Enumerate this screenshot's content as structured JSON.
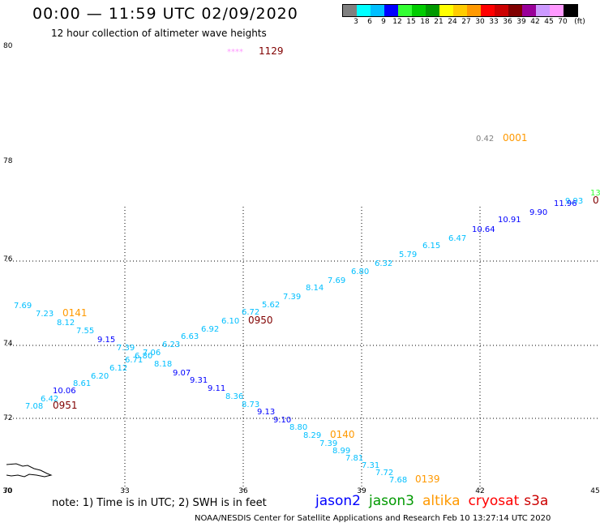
{
  "header": {
    "title": "00:00 — 11:59 UTC 02/09/2020",
    "subtitle": "12 hour collection of altimeter wave heights"
  },
  "colorbar": {
    "colors": [
      "#808080",
      "#00ffff",
      "#00bfff",
      "#0000ff",
      "#33ff33",
      "#00cc00",
      "#009900",
      "#ffff00",
      "#ffcc00",
      "#ff9900",
      "#ff0000",
      "#cc0000",
      "#800000",
      "#990099",
      "#cc99ff",
      "#ff99ff",
      "#000000"
    ],
    "labels": [
      "3",
      "6",
      "9",
      "12",
      "15",
      "18",
      "21",
      "24",
      "27",
      "30",
      "33",
      "36",
      "39",
      "42",
      "45",
      "70",
      "(ft)"
    ]
  },
  "axes": {
    "x_ticks": [
      "30",
      "33",
      "36",
      "39",
      "42",
      "45"
    ],
    "y_ticks": [
      "80",
      "78",
      "76",
      "74",
      "72",
      "70"
    ]
  },
  "readings": [
    {
      "t": "****",
      "color": "#ff99ff",
      "size": 10
    },
    {
      "t": "1129",
      "color": "#800000",
      "size": 12
    },
    {
      "t": "0.42",
      "color": "#808080",
      "size": 10
    },
    {
      "t": "0001",
      "color": "#ff9900",
      "size": 12
    },
    {
      "t": "13",
      "color": "#33ff33",
      "size": 10
    },
    {
      "t": "0",
      "color": "#800000",
      "size": 12
    },
    {
      "t": "9.93",
      "color": "#00bfff",
      "size": 10
    },
    {
      "t": "11.96",
      "color": "#0000ff",
      "size": 10
    },
    {
      "t": "9.90",
      "color": "#0000ff",
      "size": 10
    },
    {
      "t": "10.91",
      "color": "#0000ff",
      "size": 10
    },
    {
      "t": "10.64",
      "color": "#0000ff",
      "size": 10
    },
    {
      "t": "6.47",
      "color": "#00bfff",
      "size": 10
    },
    {
      "t": "6.15",
      "color": "#00bfff",
      "size": 10
    },
    {
      "t": "5.79",
      "color": "#00bfff",
      "size": 10
    },
    {
      "t": "6.32",
      "color": "#00bfff",
      "size": 10
    },
    {
      "t": "6.80",
      "color": "#00bfff",
      "size": 10
    },
    {
      "t": "7.69",
      "color": "#00bfff",
      "size": 10
    },
    {
      "t": "8.14",
      "color": "#00bfff",
      "size": 10
    },
    {
      "t": "7.39",
      "color": "#00bfff",
      "size": 10
    },
    {
      "t": "5.62",
      "color": "#00bfff",
      "size": 10
    },
    {
      "t": "6.72",
      "color": "#00bfff",
      "size": 10
    },
    {
      "t": "6.10",
      "color": "#00bfff",
      "size": 10
    },
    {
      "t": "0950",
      "color": "#800000",
      "size": 12
    },
    {
      "t": "6.92",
      "color": "#00bfff",
      "size": 10
    },
    {
      "t": "6.63",
      "color": "#00bfff",
      "size": 10
    },
    {
      "t": "6.23",
      "color": "#00bfff",
      "size": 10
    },
    {
      "t": "7.06",
      "color": "#00bfff",
      "size": 10
    },
    {
      "t": "6.80",
      "color": "#00bfff",
      "size": 10
    },
    {
      "t": "6.71",
      "color": "#00bfff",
      "size": 10
    },
    {
      "t": "7.39",
      "color": "#00bfff",
      "size": 10
    },
    {
      "t": "6.12",
      "color": "#00bfff",
      "size": 10
    },
    {
      "t": "6.20",
      "color": "#00bfff",
      "size": 10
    },
    {
      "t": "8.61",
      "color": "#00bfff",
      "size": 10
    },
    {
      "t": "10.06",
      "color": "#0000ff",
      "size": 10
    },
    {
      "t": "6.42",
      "color": "#00bfff",
      "size": 10
    },
    {
      "t": "7.08",
      "color": "#00bfff",
      "size": 10
    },
    {
      "t": "0951",
      "color": "#800000",
      "size": 12
    },
    {
      "t": "7.69",
      "color": "#00bfff",
      "size": 10
    },
    {
      "t": "7.23",
      "color": "#00bfff",
      "size": 10
    },
    {
      "t": "0141",
      "color": "#ff9900",
      "size": 12
    },
    {
      "t": "8.12",
      "color": "#00bfff",
      "size": 10
    },
    {
      "t": "7.55",
      "color": "#00bfff",
      "size": 10
    },
    {
      "t": "9.15",
      "color": "#0000ff",
      "size": 10
    },
    {
      "t": "8.18",
      "color": "#00bfff",
      "size": 10
    },
    {
      "t": "9.07",
      "color": "#0000ff",
      "size": 10
    },
    {
      "t": "9.31",
      "color": "#0000ff",
      "size": 10
    },
    {
      "t": "9.11",
      "color": "#0000ff",
      "size": 10
    },
    {
      "t": "8.36",
      "color": "#00bfff",
      "size": 10
    },
    {
      "t": "8.73",
      "color": "#00bfff",
      "size": 10
    },
    {
      "t": "9.13",
      "color": "#0000ff",
      "size": 10
    },
    {
      "t": "9.10",
      "color": "#0000ff",
      "size": 10
    },
    {
      "t": "8.80",
      "color": "#00bfff",
      "size": 10
    },
    {
      "t": "8.29",
      "color": "#00bfff",
      "size": 10
    },
    {
      "t": "0140",
      "color": "#ff9900",
      "size": 12
    },
    {
      "t": "7.39",
      "color": "#00bfff",
      "size": 10
    },
    {
      "t": "8.99",
      "color": "#00bfff",
      "size": 10
    },
    {
      "t": "7.81",
      "color": "#00bfff",
      "size": 10
    },
    {
      "t": "7.31",
      "color": "#00bfff",
      "size": 10
    },
    {
      "t": "7.72",
      "color": "#00bfff",
      "size": 10
    },
    {
      "t": "7.68",
      "color": "#00bfff",
      "size": 10
    },
    {
      "t": "0139",
      "color": "#ff9900",
      "size": 12
    }
  ],
  "footer": {
    "note": "note:  1) Time is in UTC; 2) SWH is in feet",
    "credit": "NOAA/NESDIS Center for Satellite Applications and Research    Feb 10 13:27:14 UTC 2020"
  },
  "legend": [
    {
      "name": "jason2",
      "color": "#0000ff"
    },
    {
      "name": "jason3",
      "color": "#009900"
    },
    {
      "name": "altika",
      "color": "#ff9900"
    },
    {
      "name": "cryosat",
      "color": "#ff0000"
    },
    {
      "name": "s3a",
      "color": "#cc0000"
    }
  ]
}
